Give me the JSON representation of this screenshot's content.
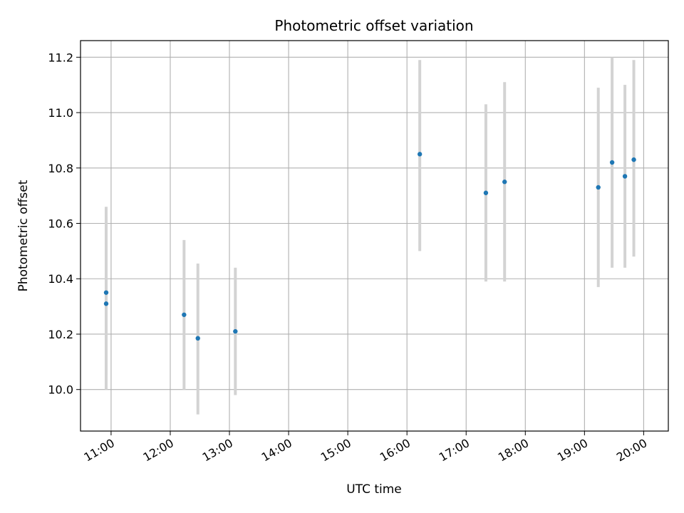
{
  "chart_data": {
    "type": "scatter",
    "title": "Photometric offset variation",
    "xlabel": "UTC time",
    "ylabel": "Photometric offset",
    "x_ticks": [
      "11:00",
      "12:00",
      "13:00",
      "14:00",
      "15:00",
      "16:00",
      "17:00",
      "18:00",
      "19:00",
      "20:00"
    ],
    "y_ticks": [
      "10.0",
      "10.2",
      "10.4",
      "10.6",
      "10.8",
      "11.0",
      "11.2"
    ],
    "xlim": [
      "10:29",
      "20:25"
    ],
    "ylim": [
      9.85,
      11.26
    ],
    "grid": true,
    "colors": {
      "points": "#1f77b4",
      "errorbars": "#d3d3d3",
      "grid": "#b0b0b0"
    },
    "points": [
      {
        "x": "10:55",
        "y": 10.35,
        "ylow": 10.05,
        "yhigh": 10.66
      },
      {
        "x": "10:55",
        "y": 10.31,
        "ylow": 10.0,
        "yhigh": 10.62
      },
      {
        "x": "12:14",
        "y": 10.27,
        "ylow": 10.0,
        "yhigh": 10.54
      },
      {
        "x": "12:28",
        "y": 10.185,
        "ylow": 9.91,
        "yhigh": 10.455
      },
      {
        "x": "13:06",
        "y": 10.21,
        "ylow": 9.98,
        "yhigh": 10.44
      },
      {
        "x": "16:13",
        "y": 10.85,
        "ylow": 10.5,
        "yhigh": 11.19
      },
      {
        "x": "17:20",
        "y": 10.71,
        "ylow": 10.39,
        "yhigh": 11.03
      },
      {
        "x": "17:39",
        "y": 10.75,
        "ylow": 10.39,
        "yhigh": 11.11
      },
      {
        "x": "19:14",
        "y": 10.73,
        "ylow": 10.37,
        "yhigh": 11.09
      },
      {
        "x": "19:28",
        "y": 10.82,
        "ylow": 10.44,
        "yhigh": 11.2
      },
      {
        "x": "19:41",
        "y": 10.77,
        "ylow": 10.44,
        "yhigh": 11.1
      },
      {
        "x": "19:50",
        "y": 10.83,
        "ylow": 10.48,
        "yhigh": 11.19
      }
    ]
  }
}
